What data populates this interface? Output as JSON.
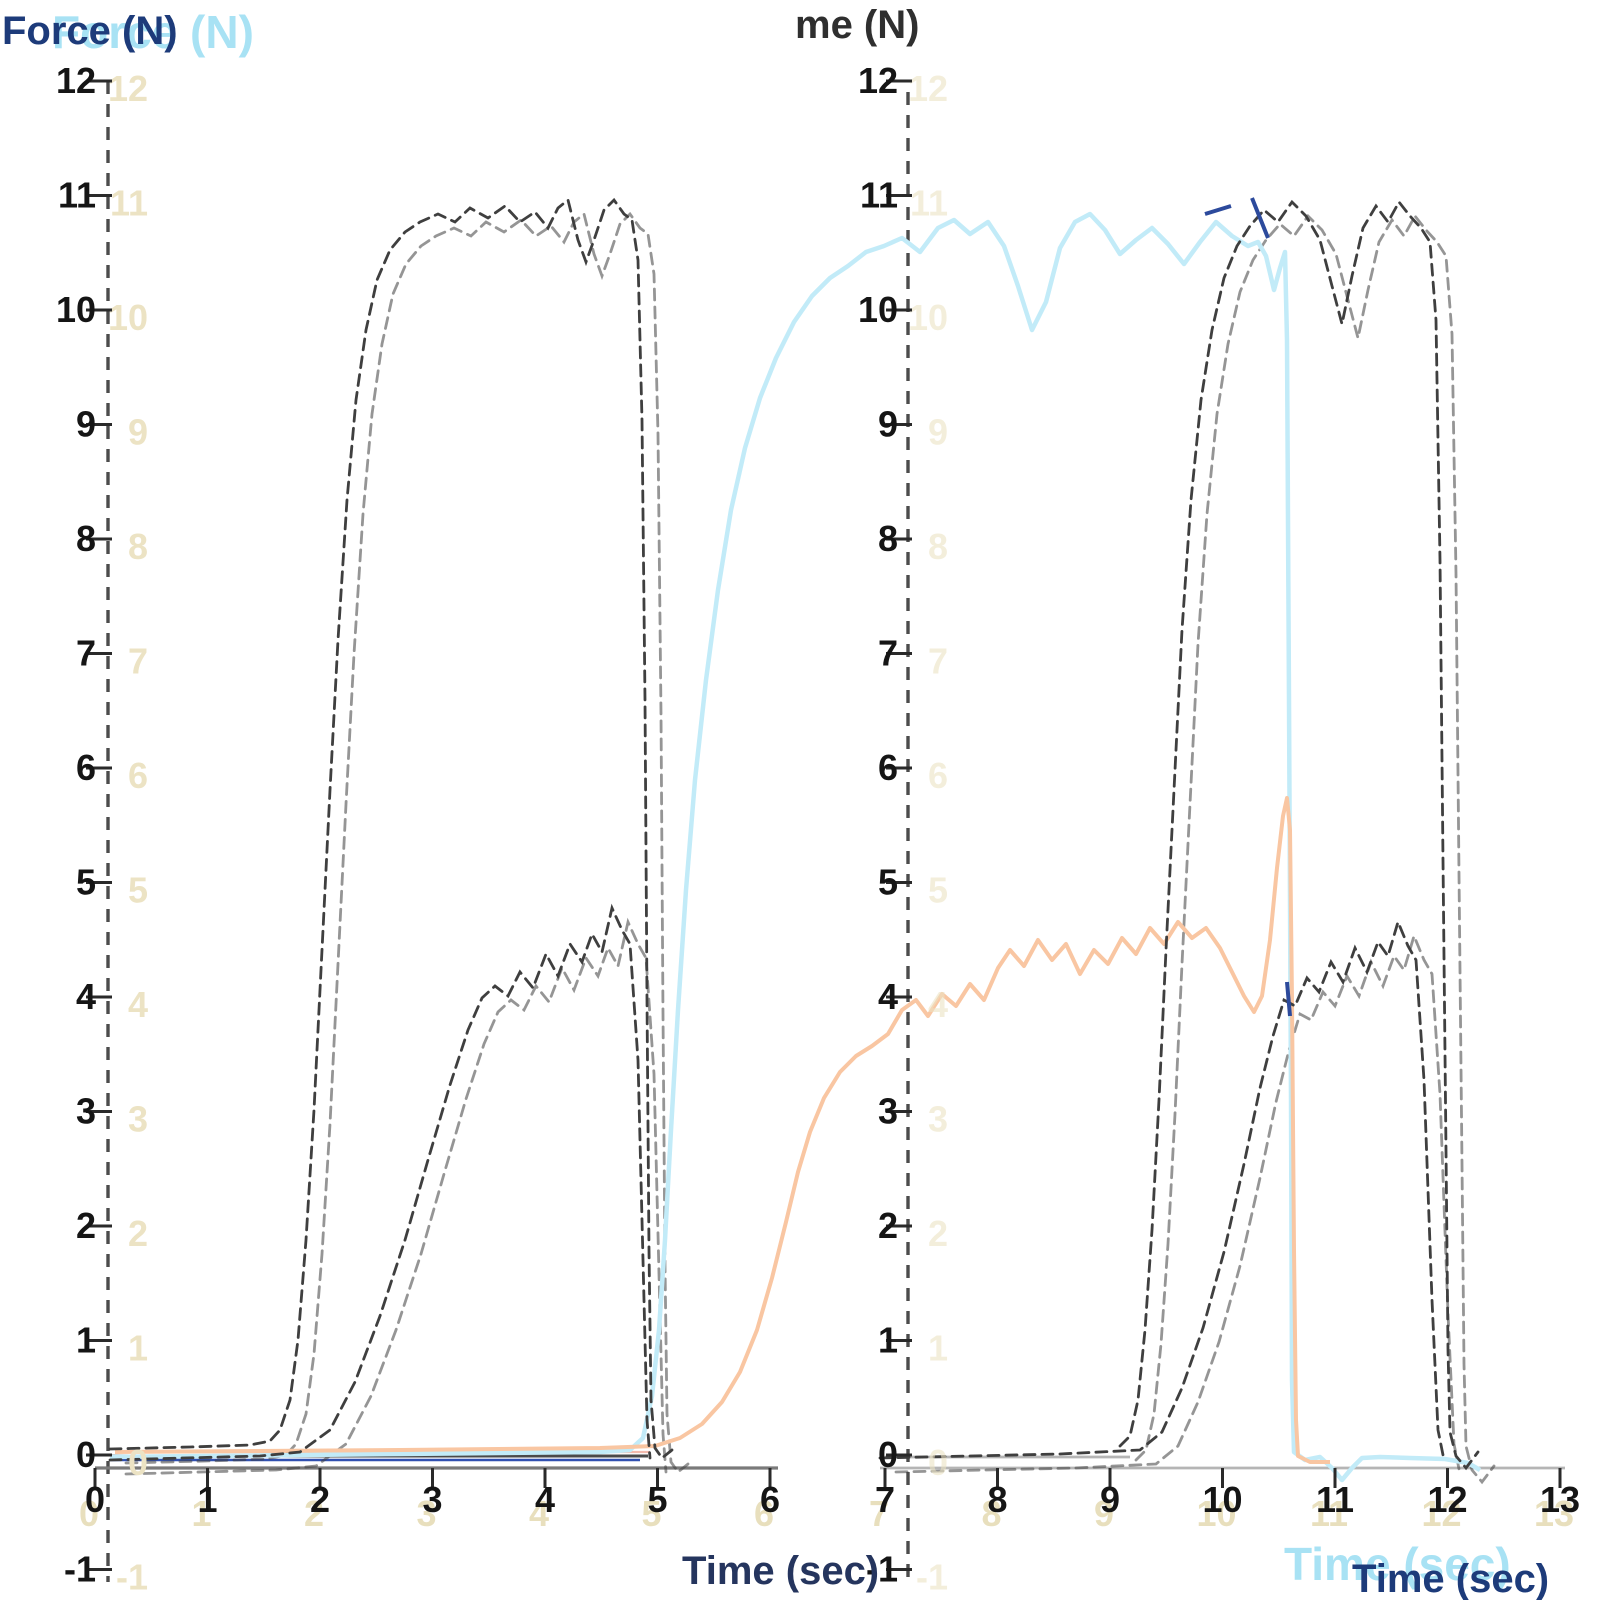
{
  "figure": {
    "y_axis_label": "Force (N)",
    "y_axis_label_ghost": "Force (N)",
    "partial_top_label": "me (N)",
    "x_axis_label_left": "Time (sec)",
    "x_axis_label_right": "Time (sec)",
    "x_axis_label_right_ghost": "Time (sec)"
  },
  "axes": {
    "y_ticks": [
      "12",
      "11",
      "10",
      "9",
      "8",
      "7",
      "6",
      "5",
      "4",
      "3",
      "2",
      "1",
      "0",
      "-1"
    ],
    "x_ticks_left": [
      "0",
      "1",
      "2",
      "3",
      "4",
      "5",
      "6"
    ],
    "x_ticks_right": [
      "7",
      "8",
      "9",
      "10",
      "11",
      "12",
      "13"
    ],
    "y_range": [
      -1,
      12
    ],
    "x_range_left_sec": [
      0,
      6
    ],
    "x_range_right_sec": [
      7,
      13
    ]
  },
  "colors": {
    "dashed_curve": "#3f3f3f",
    "dashed_curve_ghost": "#9a9a9a",
    "light_blue_curve": "#c2ebf8",
    "light_orange_curve": "#f9c6a2",
    "baseline_blue": "#3050b0",
    "baseline_pink": "#f2b3a4",
    "axis_dashed": "#4c4c4c",
    "label_navy": "#1d3b7a",
    "label_light_blue": "#a8e2f4",
    "tick_ghost_cream": "#ece3c4"
  },
  "chart_data": {
    "type": "line",
    "title": "",
    "xlabel": "Time (sec)",
    "ylabel": "Force (N)",
    "ylim": [
      -1,
      12
    ],
    "grid": false,
    "legend": "none",
    "panels": [
      {
        "x_ticks": [
          0,
          1,
          2,
          3,
          4,
          5,
          6
        ]
      },
      {
        "x_ticks": [
          7,
          8,
          9,
          10,
          11,
          12,
          13
        ]
      }
    ],
    "series": [
      {
        "name": "dashed_force_high_left",
        "style": "dashed dark",
        "x": [
          0,
          1.55,
          1.7,
          1.85,
          2.0,
          2.2,
          2.4,
          2.6,
          2.8,
          3.0,
          3.2,
          3.4,
          3.6,
          3.8,
          4.0,
          4.2,
          4.5,
          4.7,
          4.85,
          4.9,
          4.95,
          5.1
        ],
        "y": [
          0.05,
          0.1,
          0.6,
          2.5,
          5.0,
          8.5,
          10.3,
          10.8,
          10.9,
          10.7,
          10.9,
          10.8,
          10.6,
          10.3,
          10.9,
          10.8,
          10.9,
          10.8,
          10.5,
          5.0,
          0.2,
          -0.1
        ]
      },
      {
        "name": "dashed_force_low_left",
        "style": "dashed dark",
        "x": [
          0,
          1.8,
          2.1,
          2.5,
          2.9,
          3.2,
          3.5,
          3.7,
          3.9,
          4.1,
          4.3,
          4.55,
          4.7,
          4.85,
          4.92
        ],
        "y": [
          -0.05,
          0.05,
          0.8,
          2.2,
          3.5,
          4.0,
          4.3,
          4.1,
          4.5,
          4.2,
          4.6,
          4.8,
          4.4,
          3.0,
          0.1
        ]
      },
      {
        "name": "light_blue_force",
        "style": "solid light blue",
        "x": [
          0,
          4.7,
          4.9,
          5.0,
          5.2,
          5.4,
          5.6,
          5.9,
          6.2,
          6.6,
          7.0,
          7.4,
          7.7,
          7.9,
          8.1,
          8.5,
          8.9,
          9.3,
          9.7,
          10.1,
          10.4,
          10.5,
          10.55,
          10.6,
          10.63,
          11.0,
          11.2,
          11.4,
          12.2
        ],
        "y": [
          0,
          0.05,
          0.4,
          2.0,
          5.5,
          8.0,
          9.5,
          10.4,
          10.7,
          10.8,
          10.7,
          10.8,
          10.4,
          9.8,
          10.8,
          10.7,
          10.5,
          10.8,
          10.7,
          10.6,
          10.5,
          10.2,
          10.4,
          0.0,
          -0.2,
          -0.1,
          -0.4,
          -0.1,
          -0.1
        ]
      },
      {
        "name": "light_orange_force",
        "style": "solid light orange",
        "x": [
          0,
          4.9,
          5.1,
          5.4,
          5.7,
          6.0,
          6.3,
          6.6,
          7.0,
          7.2,
          7.4,
          7.7,
          8.0,
          8.2,
          8.5,
          8.8,
          9.1,
          9.4,
          9.7,
          10.0,
          10.2,
          10.35,
          10.45,
          10.55,
          10.62,
          10.66,
          10.7,
          11.0
        ],
        "y": [
          -0.05,
          0.05,
          0.3,
          0.9,
          1.8,
          2.8,
          3.4,
          3.6,
          3.9,
          4.1,
          3.9,
          4.2,
          4.3,
          4.5,
          4.3,
          4.4,
          4.6,
          4.4,
          4.5,
          4.6,
          4.4,
          4.0,
          3.9,
          4.7,
          5.7,
          3.0,
          -0.2,
          -0.2
        ]
      },
      {
        "name": "dashed_force_high_right",
        "style": "dashed dark",
        "x": [
          9.2,
          9.4,
          9.55,
          9.7,
          9.85,
          10.0,
          10.2,
          10.5,
          10.8,
          11.0,
          11.1,
          11.2,
          11.35,
          11.5,
          11.7,
          11.85,
          11.95,
          12.0,
          12.15,
          12.3
        ],
        "y": [
          0.1,
          0.5,
          2.5,
          6.0,
          9.0,
          10.4,
          10.8,
          10.9,
          10.7,
          10.3,
          10.0,
          10.6,
          10.9,
          10.8,
          10.9,
          10.7,
          5.0,
          0.3,
          -0.1,
          0.1
        ]
      },
      {
        "name": "dashed_force_low_right",
        "style": "dashed dark",
        "x": [
          9.3,
          9.6,
          9.9,
          10.2,
          10.5,
          10.7,
          10.9,
          11.1,
          11.3,
          11.5,
          11.7,
          11.8,
          11.9,
          12.0
        ],
        "y": [
          0.05,
          0.7,
          1.6,
          2.5,
          3.4,
          4.0,
          4.1,
          4.3,
          4.2,
          4.5,
          4.7,
          4.4,
          3.2,
          0.2
        ]
      }
    ]
  }
}
